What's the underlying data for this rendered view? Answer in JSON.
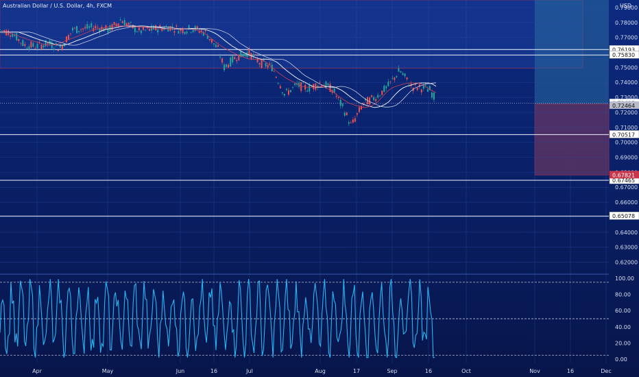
{
  "chart_data": {
    "type": "line",
    "title": "Australian Dollar / U.S. Dollar, 4h, FXCM",
    "currency": "USD",
    "x_labels": [
      "Apr",
      "May",
      "Jun",
      "16",
      "Jul",
      "Aug",
      "17",
      "Sep",
      "16",
      "Oct",
      "Nov",
      "16",
      "Dec"
    ],
    "y_ticks": [
      "0.79000",
      "0.78000",
      "0.77000",
      "0.76000",
      "0.75000",
      "0.74000",
      "0.73000",
      "0.72000",
      "0.71000",
      "0.70000",
      "0.69000",
      "0.68000",
      "0.67000",
      "0.66000",
      "0.65000",
      "0.64000",
      "0.63000",
      "0.62000"
    ],
    "ylim": [
      0.612,
      0.795
    ],
    "horizontal_levels": [
      {
        "label": "0.76193",
        "value": 0.76193
      },
      {
        "label": "0.75830",
        "value": 0.7583
      },
      {
        "label": "0.70517",
        "value": 0.70517
      },
      {
        "label": "0.67465",
        "value": 0.67465
      },
      {
        "label": "0.65078",
        "value": 0.65078
      }
    ],
    "current_labels": [
      {
        "label": "0.72625",
        "value": 0.72625,
        "style": "dotted"
      },
      {
        "label": "0.72464",
        "value": 0.72464,
        "style": "gray"
      },
      {
        "label": "0.67821",
        "value": 0.67821,
        "style": "red"
      }
    ],
    "price_path": [
      [
        0,
        0.775
      ],
      [
        0.02,
        0.773
      ],
      [
        0.04,
        0.765
      ],
      [
        0.06,
        0.764
      ],
      [
        0.08,
        0.766
      ],
      [
        0.1,
        0.763
      ],
      [
        0.12,
        0.775
      ],
      [
        0.14,
        0.776
      ],
      [
        0.16,
        0.777
      ],
      [
        0.18,
        0.775
      ],
      [
        0.2,
        0.782
      ],
      [
        0.21,
        0.779
      ],
      [
        0.23,
        0.774
      ],
      [
        0.26,
        0.776
      ],
      [
        0.28,
        0.777
      ],
      [
        0.3,
        0.775
      ],
      [
        0.32,
        0.776
      ],
      [
        0.34,
        0.773
      ],
      [
        0.36,
        0.762
      ],
      [
        0.37,
        0.75
      ],
      [
        0.39,
        0.757
      ],
      [
        0.41,
        0.76
      ],
      [
        0.43,
        0.753
      ],
      [
        0.45,
        0.75
      ],
      [
        0.47,
        0.732
      ],
      [
        0.49,
        0.738
      ],
      [
        0.51,
        0.736
      ],
      [
        0.53,
        0.74
      ],
      [
        0.55,
        0.735
      ],
      [
        0.57,
        0.72
      ],
      [
        0.58,
        0.711
      ],
      [
        0.6,
        0.726
      ],
      [
        0.62,
        0.73
      ],
      [
        0.64,
        0.737
      ],
      [
        0.66,
        0.748
      ],
      [
        0.68,
        0.737
      ],
      [
        0.7,
        0.736
      ],
      [
        0.71,
        0.735
      ],
      [
        0.72,
        0.728
      ]
    ],
    "oscillator": {
      "y_ticks": [
        "100.00",
        "80.00",
        "60.00",
        "40.00",
        "20.00",
        "0.00"
      ],
      "ylim": [
        -5,
        105
      ],
      "levels": [
        95,
        50,
        5
      ]
    },
    "grid": true
  }
}
